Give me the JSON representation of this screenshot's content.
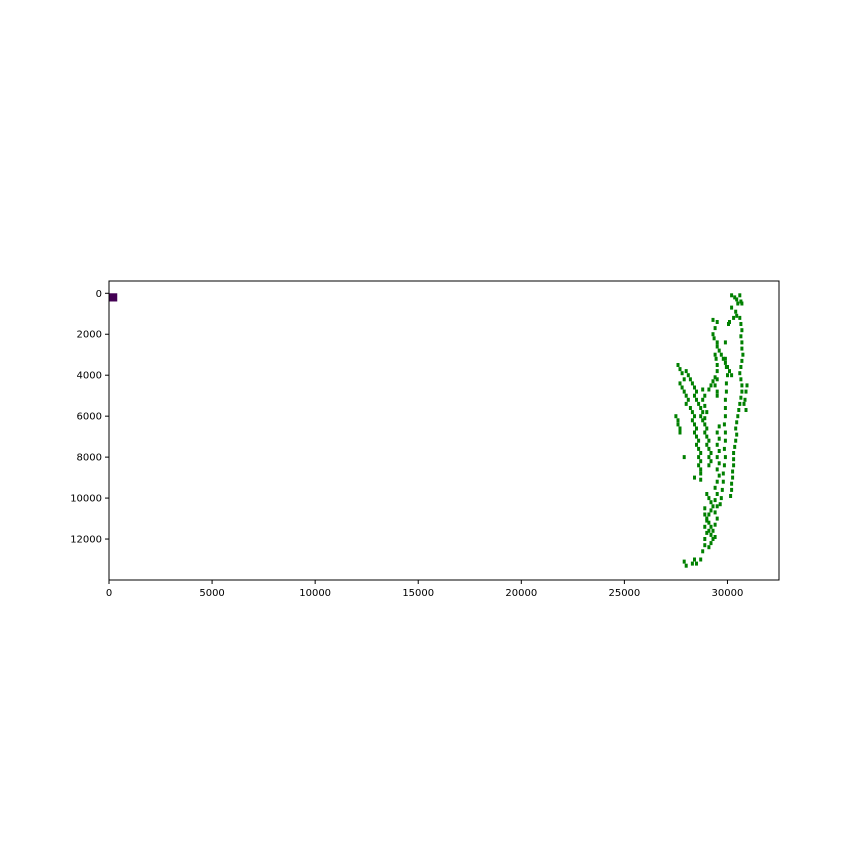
{
  "chart_data": {
    "type": "scatter",
    "title": "",
    "xlabel": "",
    "ylabel": "",
    "xlim": [
      0,
      32500
    ],
    "ylim": [
      14000,
      -600
    ],
    "y_inverted": true,
    "grid": false,
    "legend": "none",
    "x_ticks": [
      0,
      5000,
      10000,
      15000,
      20000,
      25000,
      30000
    ],
    "x_tick_labels": [
      "0",
      "5000",
      "10000",
      "15000",
      "20000",
      "25000",
      "30000"
    ],
    "y_ticks": [
      0,
      2000,
      4000,
      6000,
      8000,
      10000,
      12000
    ],
    "y_tick_labels": [
      "0",
      "2000",
      "4000",
      "6000",
      "8000",
      "10000",
      "12000"
    ],
    "colors": {
      "marker_square": "#440154",
      "series_points": "#008000",
      "axes": "#000000"
    },
    "marker_square": {
      "x": [
        0,
        400
      ],
      "y": [
        0,
        400
      ]
    },
    "series": [
      {
        "color": "#008000",
        "points": [
          [
            30200,
            100
          ],
          [
            30350,
            200
          ],
          [
            30450,
            300
          ],
          [
            30600,
            100
          ],
          [
            30650,
            400
          ],
          [
            30500,
            500
          ],
          [
            30700,
            500
          ],
          [
            30200,
            700
          ],
          [
            30400,
            900
          ],
          [
            30450,
            1100
          ],
          [
            30300,
            1200
          ],
          [
            30100,
            1400
          ],
          [
            30050,
            1500
          ],
          [
            29500,
            1400
          ],
          [
            29300,
            1300
          ],
          [
            29400,
            1700
          ],
          [
            29300,
            2000
          ],
          [
            29350,
            2200
          ],
          [
            29500,
            2400
          ],
          [
            29900,
            2400
          ],
          [
            29500,
            2600
          ],
          [
            29600,
            2800
          ],
          [
            29700,
            3000
          ],
          [
            29800,
            3200
          ],
          [
            29900,
            3400
          ],
          [
            30000,
            3600
          ],
          [
            30100,
            3800
          ],
          [
            30200,
            4000
          ],
          [
            29400,
            3000
          ],
          [
            29450,
            3200
          ],
          [
            29500,
            3500
          ],
          [
            29500,
            3800
          ],
          [
            29400,
            4100
          ],
          [
            29300,
            4300
          ],
          [
            29200,
            4500
          ],
          [
            29100,
            4700
          ],
          [
            30600,
            1200
          ],
          [
            30650,
            1500
          ],
          [
            30700,
            1800
          ],
          [
            30650,
            2100
          ],
          [
            30700,
            2400
          ],
          [
            30700,
            2700
          ],
          [
            30750,
            3000
          ],
          [
            30700,
            3300
          ],
          [
            30650,
            3600
          ],
          [
            30600,
            3900
          ],
          [
            30650,
            4200
          ],
          [
            30700,
            4500
          ],
          [
            30700,
            4800
          ],
          [
            30650,
            5100
          ],
          [
            30600,
            5400
          ],
          [
            30550,
            5700
          ],
          [
            30500,
            6000
          ],
          [
            30450,
            6300
          ],
          [
            30400,
            6600
          ],
          [
            30450,
            6900
          ],
          [
            30400,
            7200
          ],
          [
            30350,
            7500
          ],
          [
            30300,
            7800
          ],
          [
            30300,
            8100
          ],
          [
            30300,
            8400
          ],
          [
            30250,
            8700
          ],
          [
            30250,
            9000
          ],
          [
            30200,
            9300
          ],
          [
            30200,
            9600
          ],
          [
            30150,
            9900
          ],
          [
            29900,
            3200
          ],
          [
            29950,
            3600
          ],
          [
            30000,
            4000
          ],
          [
            29950,
            4400
          ],
          [
            29950,
            4800
          ],
          [
            29900,
            5200
          ],
          [
            29900,
            5600
          ],
          [
            29900,
            6000
          ],
          [
            29850,
            6400
          ],
          [
            29900,
            6800
          ],
          [
            29900,
            7200
          ],
          [
            29850,
            7600
          ],
          [
            29900,
            8000
          ],
          [
            29850,
            8400
          ],
          [
            29800,
            8800
          ],
          [
            29800,
            9200
          ],
          [
            29750,
            9600
          ],
          [
            29700,
            10000
          ],
          [
            29650,
            10300
          ],
          [
            30950,
            4500
          ],
          [
            30900,
            4800
          ],
          [
            30850,
            5200
          ],
          [
            30900,
            5700
          ],
          [
            30800,
            5400
          ],
          [
            27600,
            3500
          ],
          [
            27700,
            3700
          ],
          [
            27800,
            3900
          ],
          [
            27900,
            4200
          ],
          [
            27700,
            4400
          ],
          [
            27800,
            4600
          ],
          [
            27900,
            4800
          ],
          [
            28000,
            5000
          ],
          [
            28100,
            5200
          ],
          [
            28000,
            5400
          ],
          [
            28200,
            5600
          ],
          [
            28300,
            5800
          ],
          [
            28400,
            6000
          ],
          [
            28300,
            6200
          ],
          [
            28400,
            6400
          ],
          [
            28500,
            6600
          ],
          [
            28400,
            6800
          ],
          [
            28500,
            7000
          ],
          [
            28600,
            7200
          ],
          [
            28500,
            7400
          ],
          [
            28600,
            7600
          ],
          [
            28700,
            7800
          ],
          [
            28600,
            8000
          ],
          [
            28700,
            8200
          ],
          [
            28600,
            8400
          ],
          [
            28700,
            8600
          ],
          [
            28700,
            8800
          ],
          [
            28700,
            9100
          ],
          [
            28000,
            3800
          ],
          [
            28100,
            4000
          ],
          [
            28200,
            4200
          ],
          [
            28300,
            4400
          ],
          [
            28400,
            4600
          ],
          [
            28500,
            4800
          ],
          [
            28400,
            5000
          ],
          [
            28500,
            5200
          ],
          [
            28600,
            5400
          ],
          [
            28700,
            5600
          ],
          [
            28800,
            5800
          ],
          [
            28700,
            6000
          ],
          [
            28800,
            6200
          ],
          [
            28900,
            6400
          ],
          [
            29000,
            6600
          ],
          [
            28900,
            6800
          ],
          [
            29000,
            7000
          ],
          [
            29100,
            7200
          ],
          [
            29000,
            7400
          ],
          [
            29100,
            7600
          ],
          [
            29200,
            7800
          ],
          [
            29100,
            8000
          ],
          [
            29200,
            8200
          ],
          [
            29100,
            8400
          ],
          [
            28800,
            4700
          ],
          [
            28900,
            5000
          ],
          [
            28800,
            5200
          ],
          [
            28900,
            5500
          ],
          [
            29000,
            5800
          ],
          [
            28900,
            6100
          ],
          [
            29500,
            4200
          ],
          [
            29400,
            4500
          ],
          [
            29500,
            4800
          ],
          [
            29500,
            5000
          ],
          [
            29600,
            6500
          ],
          [
            29500,
            6800
          ],
          [
            29600,
            7100
          ],
          [
            29500,
            7400
          ],
          [
            29600,
            7700
          ],
          [
            29500,
            8000
          ],
          [
            29600,
            8300
          ],
          [
            29500,
            8600
          ],
          [
            29600,
            8900
          ],
          [
            29500,
            9200
          ],
          [
            27500,
            6000
          ],
          [
            27600,
            6200
          ],
          [
            27600,
            6400
          ],
          [
            27700,
            6600
          ],
          [
            27700,
            6800
          ],
          [
            27900,
            8000
          ],
          [
            28400,
            9000
          ],
          [
            29000,
            9800
          ],
          [
            29100,
            10000
          ],
          [
            29200,
            10200
          ],
          [
            29300,
            10400
          ],
          [
            29200,
            10600
          ],
          [
            29100,
            10800
          ],
          [
            29000,
            11000
          ],
          [
            29100,
            11200
          ],
          [
            29200,
            11400
          ],
          [
            29100,
            11600
          ],
          [
            29200,
            11800
          ],
          [
            29300,
            12000
          ],
          [
            29200,
            12200
          ],
          [
            29100,
            12400
          ],
          [
            29400,
            9500
          ],
          [
            29500,
            9800
          ],
          [
            29400,
            10100
          ],
          [
            29500,
            10400
          ],
          [
            29400,
            10700
          ],
          [
            29500,
            11000
          ],
          [
            29400,
            11300
          ],
          [
            29300,
            11600
          ],
          [
            29400,
            11900
          ],
          [
            28900,
            10500
          ],
          [
            28900,
            10800
          ],
          [
            29000,
            11100
          ],
          [
            28900,
            11400
          ],
          [
            29000,
            11700
          ],
          [
            28900,
            12000
          ],
          [
            28900,
            12300
          ],
          [
            28800,
            12600
          ],
          [
            28700,
            13000
          ],
          [
            28400,
            13000
          ],
          [
            28300,
            13200
          ],
          [
            28500,
            13200
          ],
          [
            27900,
            13100
          ],
          [
            28000,
            13300
          ]
        ]
      }
    ]
  }
}
